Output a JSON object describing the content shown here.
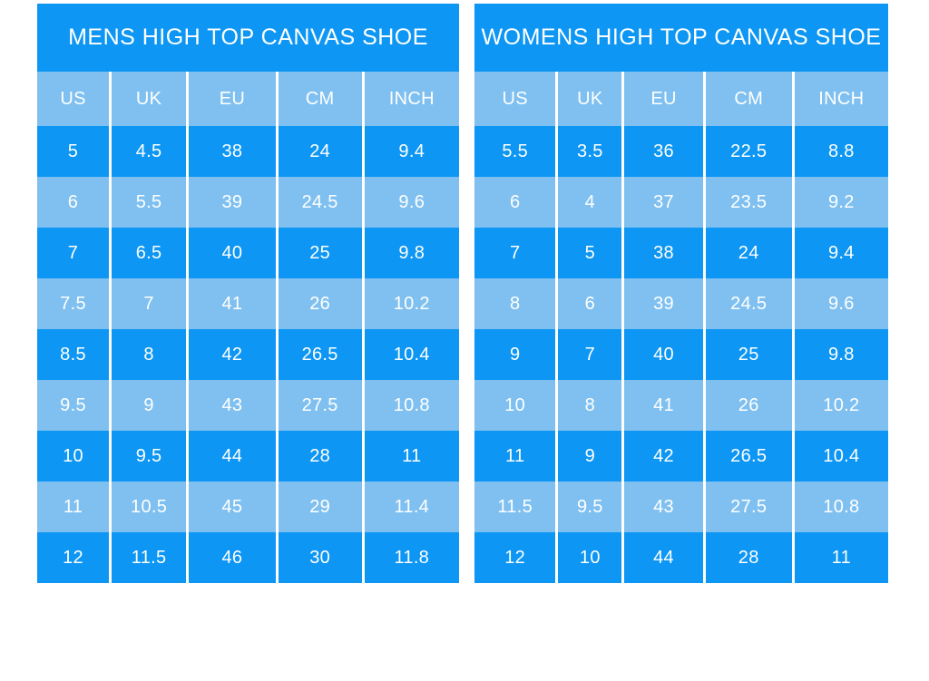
{
  "colors": {
    "row_dark": "#0d96f3",
    "row_light": "#7fc0f0",
    "text_white": "#ffffff",
    "page_bg": "#ffffff"
  },
  "chart_data": [
    {
      "type": "table",
      "title": "MENS HIGH TOP CANVAS SHOE",
      "columns": [
        "US",
        "UK",
        "EU",
        "CM",
        "INCH"
      ],
      "rows": [
        [
          "5",
          "4.5",
          "38",
          "24",
          "9.4"
        ],
        [
          "6",
          "5.5",
          "39",
          "24.5",
          "9.6"
        ],
        [
          "7",
          "6.5",
          "40",
          "25",
          "9.8"
        ],
        [
          "7.5",
          "7",
          "41",
          "26",
          "10.2"
        ],
        [
          "8.5",
          "8",
          "42",
          "26.5",
          "10.4"
        ],
        [
          "9.5",
          "9",
          "43",
          "27.5",
          "10.8"
        ],
        [
          "10",
          "9.5",
          "44",
          "28",
          "11"
        ],
        [
          "11",
          "10.5",
          "45",
          "29",
          "11.4"
        ],
        [
          "12",
          "11.5",
          "46",
          "30",
          "11.8"
        ]
      ]
    },
    {
      "type": "table",
      "title": "WOMENS HIGH TOP CANVAS SHOE",
      "columns": [
        "US",
        "UK",
        "EU",
        "CM",
        "INCH"
      ],
      "rows": [
        [
          "5.5",
          "3.5",
          "36",
          "22.5",
          "8.8"
        ],
        [
          "6",
          "4",
          "37",
          "23.5",
          "9.2"
        ],
        [
          "7",
          "5",
          "38",
          "24",
          "9.4"
        ],
        [
          "8",
          "6",
          "39",
          "24.5",
          "9.6"
        ],
        [
          "9",
          "7",
          "40",
          "25",
          "9.8"
        ],
        [
          "10",
          "8",
          "41",
          "26",
          "10.2"
        ],
        [
          "11",
          "9",
          "42",
          "26.5",
          "10.4"
        ],
        [
          "11.5",
          "9.5",
          "43",
          "27.5",
          "10.8"
        ],
        [
          "12",
          "10",
          "44",
          "28",
          "11"
        ]
      ]
    }
  ]
}
